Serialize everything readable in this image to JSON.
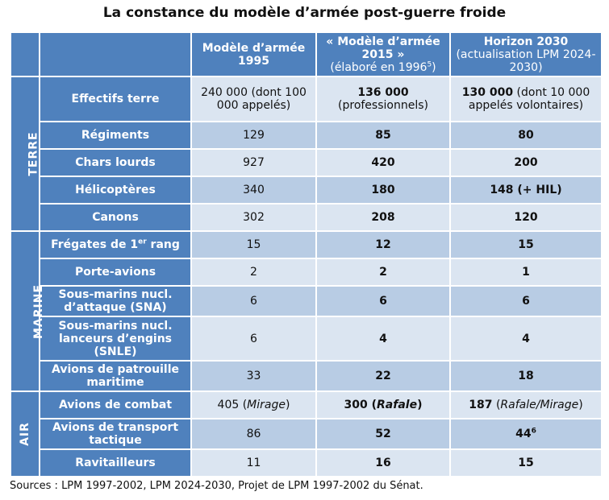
{
  "title": "La constance du modèle d’armée post-guerre froide",
  "header": {
    "col1": "Modèle d’armée 1995",
    "col2_main": "« Modèle d’armée 2015 »",
    "col2_sub": "(élaboré en 1996",
    "col2_sup": "5",
    "col2_sub_end": ")",
    "col3_main": "Horizon 2030",
    "col3_sub": "(actualisation LPM 2024-2030)"
  },
  "groups": {
    "terre": "TERRE",
    "marine": "MARINE",
    "air": "AIR"
  },
  "rows": [
    {
      "label": "Effectifs terre",
      "c1": "240 000 (dont 100 000 appelés)",
      "c2a": "136 000",
      "c2b": "(professionnels)",
      "c3a": "130 000",
      "c3b": "(dont 10 000 appelés volontaires)"
    },
    {
      "label": "Régiments",
      "c1": "129",
      "c2": "85",
      "c3": "80"
    },
    {
      "label": "Chars lourds",
      "c1": "927",
      "c2": "420",
      "c3": "200"
    },
    {
      "label": "Hélicoptères",
      "c1": "340",
      "c2": "180",
      "c3": "148 (+ HIL)"
    },
    {
      "label": "Canons",
      "c1": "302",
      "c2": "208",
      "c3": "120"
    },
    {
      "label_a": "Frégates de 1",
      "label_sup": "er",
      "label_b": " rang",
      "c1": "15",
      "c2": "12",
      "c3": "15"
    },
    {
      "label": "Porte-avions",
      "c1": "2",
      "c2": "2",
      "c3": "1"
    },
    {
      "label": "Sous-marins nucl. d’attaque (SNA)",
      "c1": "6",
      "c2": "6",
      "c3": "6"
    },
    {
      "label": "Sous-marins nucl. lanceurs d’engins (SNLE)",
      "c1": "6",
      "c2": "4",
      "c3": "4"
    },
    {
      "label": "Avions de patrouille maritime",
      "c1": "33",
      "c2": "22",
      "c3": "18"
    },
    {
      "label": "Avions de combat",
      "c1a": "405 (",
      "c1i": "Mirage",
      "c1b": ")",
      "c2a": "300 (",
      "c2i": "Rafale",
      "c2b": ")",
      "c3a": "187",
      "c3b": " (",
      "c3i": "Rafale/Mirage",
      "c3c": ")"
    },
    {
      "label": "Avions de transport tactique",
      "c1": "86",
      "c2": "52",
      "c3": "44",
      "c3_sup": "6"
    },
    {
      "label": "Ravitailleurs",
      "c1": "11",
      "c2": "16",
      "c3": "15"
    }
  ],
  "source": "Sources : LPM 1997-2002, LPM 2024-2030, Projet de LPM 1997-2002 du Sénat."
}
